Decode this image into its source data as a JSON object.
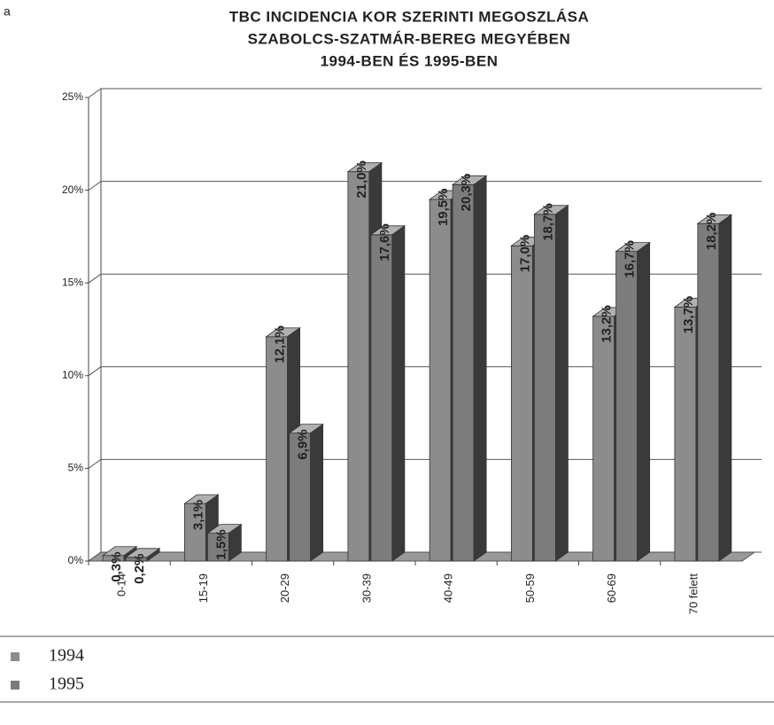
{
  "panel_label": "a",
  "chart_data": {
    "type": "bar3d",
    "title": [
      "TBC INCIDENCIA KOR SZERINTI MEGOSZLÁSA",
      "SZABOLCS-SZATMÁR-BEREG MEGYÉBEN",
      "1994-BEN ÉS 1995-BEN"
    ],
    "categories": [
      "0-14",
      "15-19",
      "20-29",
      "30-39",
      "40-49",
      "50-59",
      "60-69",
      "70 felett"
    ],
    "series": [
      {
        "name": "1994",
        "color": "#8c8c8c",
        "values": [
          0.3,
          3.1,
          12.1,
          21.0,
          19.5,
          17.0,
          13.2,
          13.7
        ],
        "value_labels": [
          "0,3%",
          "3,1%",
          "12,1%",
          "21,0%",
          "19,5%",
          "17,0%",
          "13,2%",
          "13,7%"
        ]
      },
      {
        "name": "1995",
        "color": "#7c7c7c",
        "values": [
          0.2,
          1.5,
          6.9,
          17.6,
          20.3,
          18.7,
          16.7,
          18.2
        ],
        "value_labels": [
          "0,2%",
          "1,5%",
          "6,9%",
          "17,6%",
          "20,3%",
          "18,7%",
          "16,7%",
          "18,2%"
        ]
      }
    ],
    "ylim": [
      0,
      25
    ],
    "yticks": [
      {
        "value": 0,
        "label": "0%"
      },
      {
        "value": 5,
        "label": "5%"
      },
      {
        "value": 10,
        "label": "10%"
      },
      {
        "value": 15,
        "label": "15%"
      },
      {
        "value": 20,
        "label": "20%"
      },
      {
        "value": 25,
        "label": "25%"
      }
    ],
    "grid": true,
    "legend": "bottom"
  }
}
